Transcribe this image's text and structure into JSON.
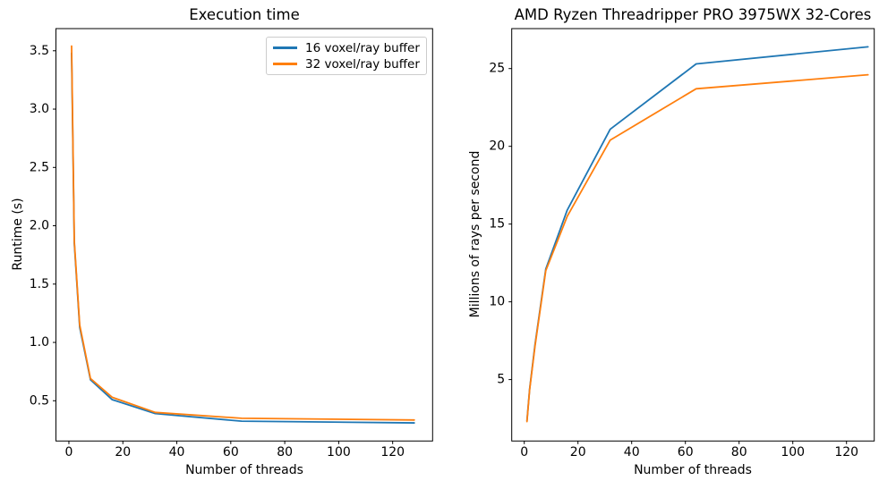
{
  "figure": {
    "background": "#ffffff",
    "text_color": "#000000",
    "spine_color": "#000000"
  },
  "chart_data": [
    {
      "type": "line",
      "title": "Execution time",
      "xlabel": "Number of threads",
      "ylabel": "Runtime (s)",
      "x": [
        1,
        2,
        4,
        8,
        16,
        32,
        64,
        128
      ],
      "series": [
        {
          "name": "16 voxel/ray buffer",
          "color": "#1f77b4",
          "values": [
            3.48,
            1.85,
            1.13,
            0.68,
            0.51,
            0.39,
            0.325,
            0.31
          ]
        },
        {
          "name": "32 voxel/ray buffer",
          "color": "#ff7f0e",
          "values": [
            3.54,
            1.87,
            1.15,
            0.69,
            0.53,
            0.4,
            0.35,
            0.335
          ]
        }
      ],
      "xticks": {
        "values": [
          0,
          20,
          40,
          60,
          80,
          100,
          120
        ],
        "labels": [
          "0",
          "20",
          "40",
          "60",
          "80",
          "100",
          "120"
        ]
      },
      "yticks": {
        "values": [
          0.5,
          1.0,
          1.5,
          2.0,
          2.5,
          3.0,
          3.5
        ],
        "labels": [
          "0.5",
          "1.0",
          "1.5",
          "2.0",
          "2.5",
          "3.0",
          "3.5"
        ]
      },
      "xlim": [
        -4.8,
        134.8
      ],
      "ylim": [
        0.155,
        3.69
      ],
      "grid": false,
      "legend": {
        "visible": true,
        "position": "upper right"
      }
    },
    {
      "type": "line",
      "title": "AMD Ryzen Threadripper PRO 3975WX 32-Cores",
      "xlabel": "Number of threads",
      "ylabel": "Millions of rays per second",
      "x": [
        1,
        2,
        4,
        8,
        16,
        32,
        64,
        128
      ],
      "series": [
        {
          "name": "16 voxel/ray buffer",
          "color": "#1f77b4",
          "values": [
            2.35,
            4.4,
            7.25,
            12.1,
            15.9,
            21.1,
            25.3,
            26.4
          ]
        },
        {
          "name": "32 voxel/ray buffer",
          "color": "#ff7f0e",
          "values": [
            2.3,
            4.35,
            7.15,
            12.0,
            15.5,
            20.4,
            23.7,
            24.6
          ]
        }
      ],
      "xticks": {
        "values": [
          0,
          20,
          40,
          60,
          80,
          100,
          120
        ],
        "labels": [
          "0",
          "20",
          "40",
          "60",
          "80",
          "100",
          "120"
        ]
      },
      "yticks": {
        "values": [
          5,
          10,
          15,
          20,
          25
        ],
        "labels": [
          "5",
          "10",
          "15",
          "20",
          "25"
        ]
      },
      "xlim": [
        -4.67,
        130.33
      ],
      "ylim": [
        1.05,
        27.57
      ],
      "grid": false,
      "legend": {
        "visible": false
      }
    }
  ]
}
